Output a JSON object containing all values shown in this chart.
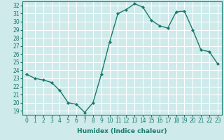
{
  "title": "",
  "xlabel": "Humidex (Indice chaleur)",
  "ylabel": "",
  "x": [
    0,
    1,
    2,
    3,
    4,
    5,
    6,
    7,
    8,
    9,
    10,
    11,
    12,
    13,
    14,
    15,
    16,
    17,
    18,
    19,
    20,
    21,
    22,
    23
  ],
  "y": [
    23.5,
    23.0,
    22.8,
    22.5,
    21.5,
    20.0,
    19.8,
    18.8,
    20.0,
    23.5,
    27.5,
    31.0,
    31.5,
    32.2,
    31.8,
    30.2,
    29.5,
    29.2,
    31.2,
    31.3,
    29.0,
    26.5,
    26.3,
    24.8
  ],
  "line_color": "#1a7a6e",
  "marker": "D",
  "marker_size": 2.0,
  "background_color": "#ceeaea",
  "grid_color": "#ffffff",
  "xlim": [
    -0.5,
    23.5
  ],
  "ylim": [
    18.5,
    32.5
  ],
  "yticks": [
    19,
    20,
    21,
    22,
    23,
    24,
    25,
    26,
    27,
    28,
    29,
    30,
    31,
    32
  ],
  "xticks": [
    0,
    1,
    2,
    3,
    4,
    5,
    6,
    7,
    8,
    9,
    10,
    11,
    12,
    13,
    14,
    15,
    16,
    17,
    18,
    19,
    20,
    21,
    22,
    23
  ],
  "label_fontsize": 6.5,
  "tick_fontsize": 5.5,
  "linewidth": 1.0
}
